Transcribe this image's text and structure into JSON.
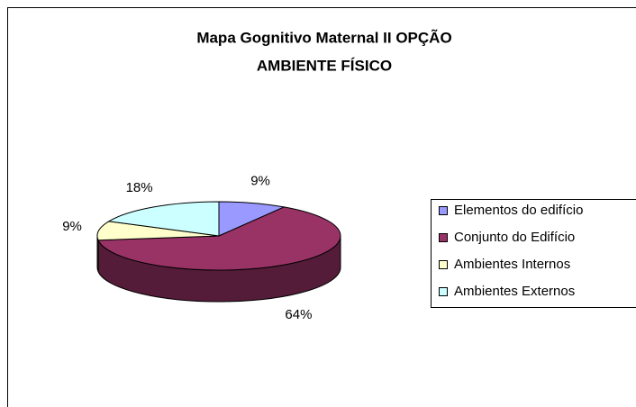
{
  "chart_data": {
    "type": "pie3d",
    "title": [
      "Mapa Gognitivo Maternal II  OPÇÃO",
      "AMBIENTE FÍSICO"
    ],
    "categories": [
      "Elementos do edifício",
      "Conjunto do Edifício",
      "Ambientes Internos",
      "Ambientes Externos"
    ],
    "values": [
      9,
      64,
      9,
      18
    ],
    "value_labels": [
      "9%",
      "64%",
      "9%",
      "18%"
    ],
    "colors": [
      "#9999ff",
      "#993366",
      "#ffffcc",
      "#ccffff"
    ],
    "legend": "right"
  }
}
